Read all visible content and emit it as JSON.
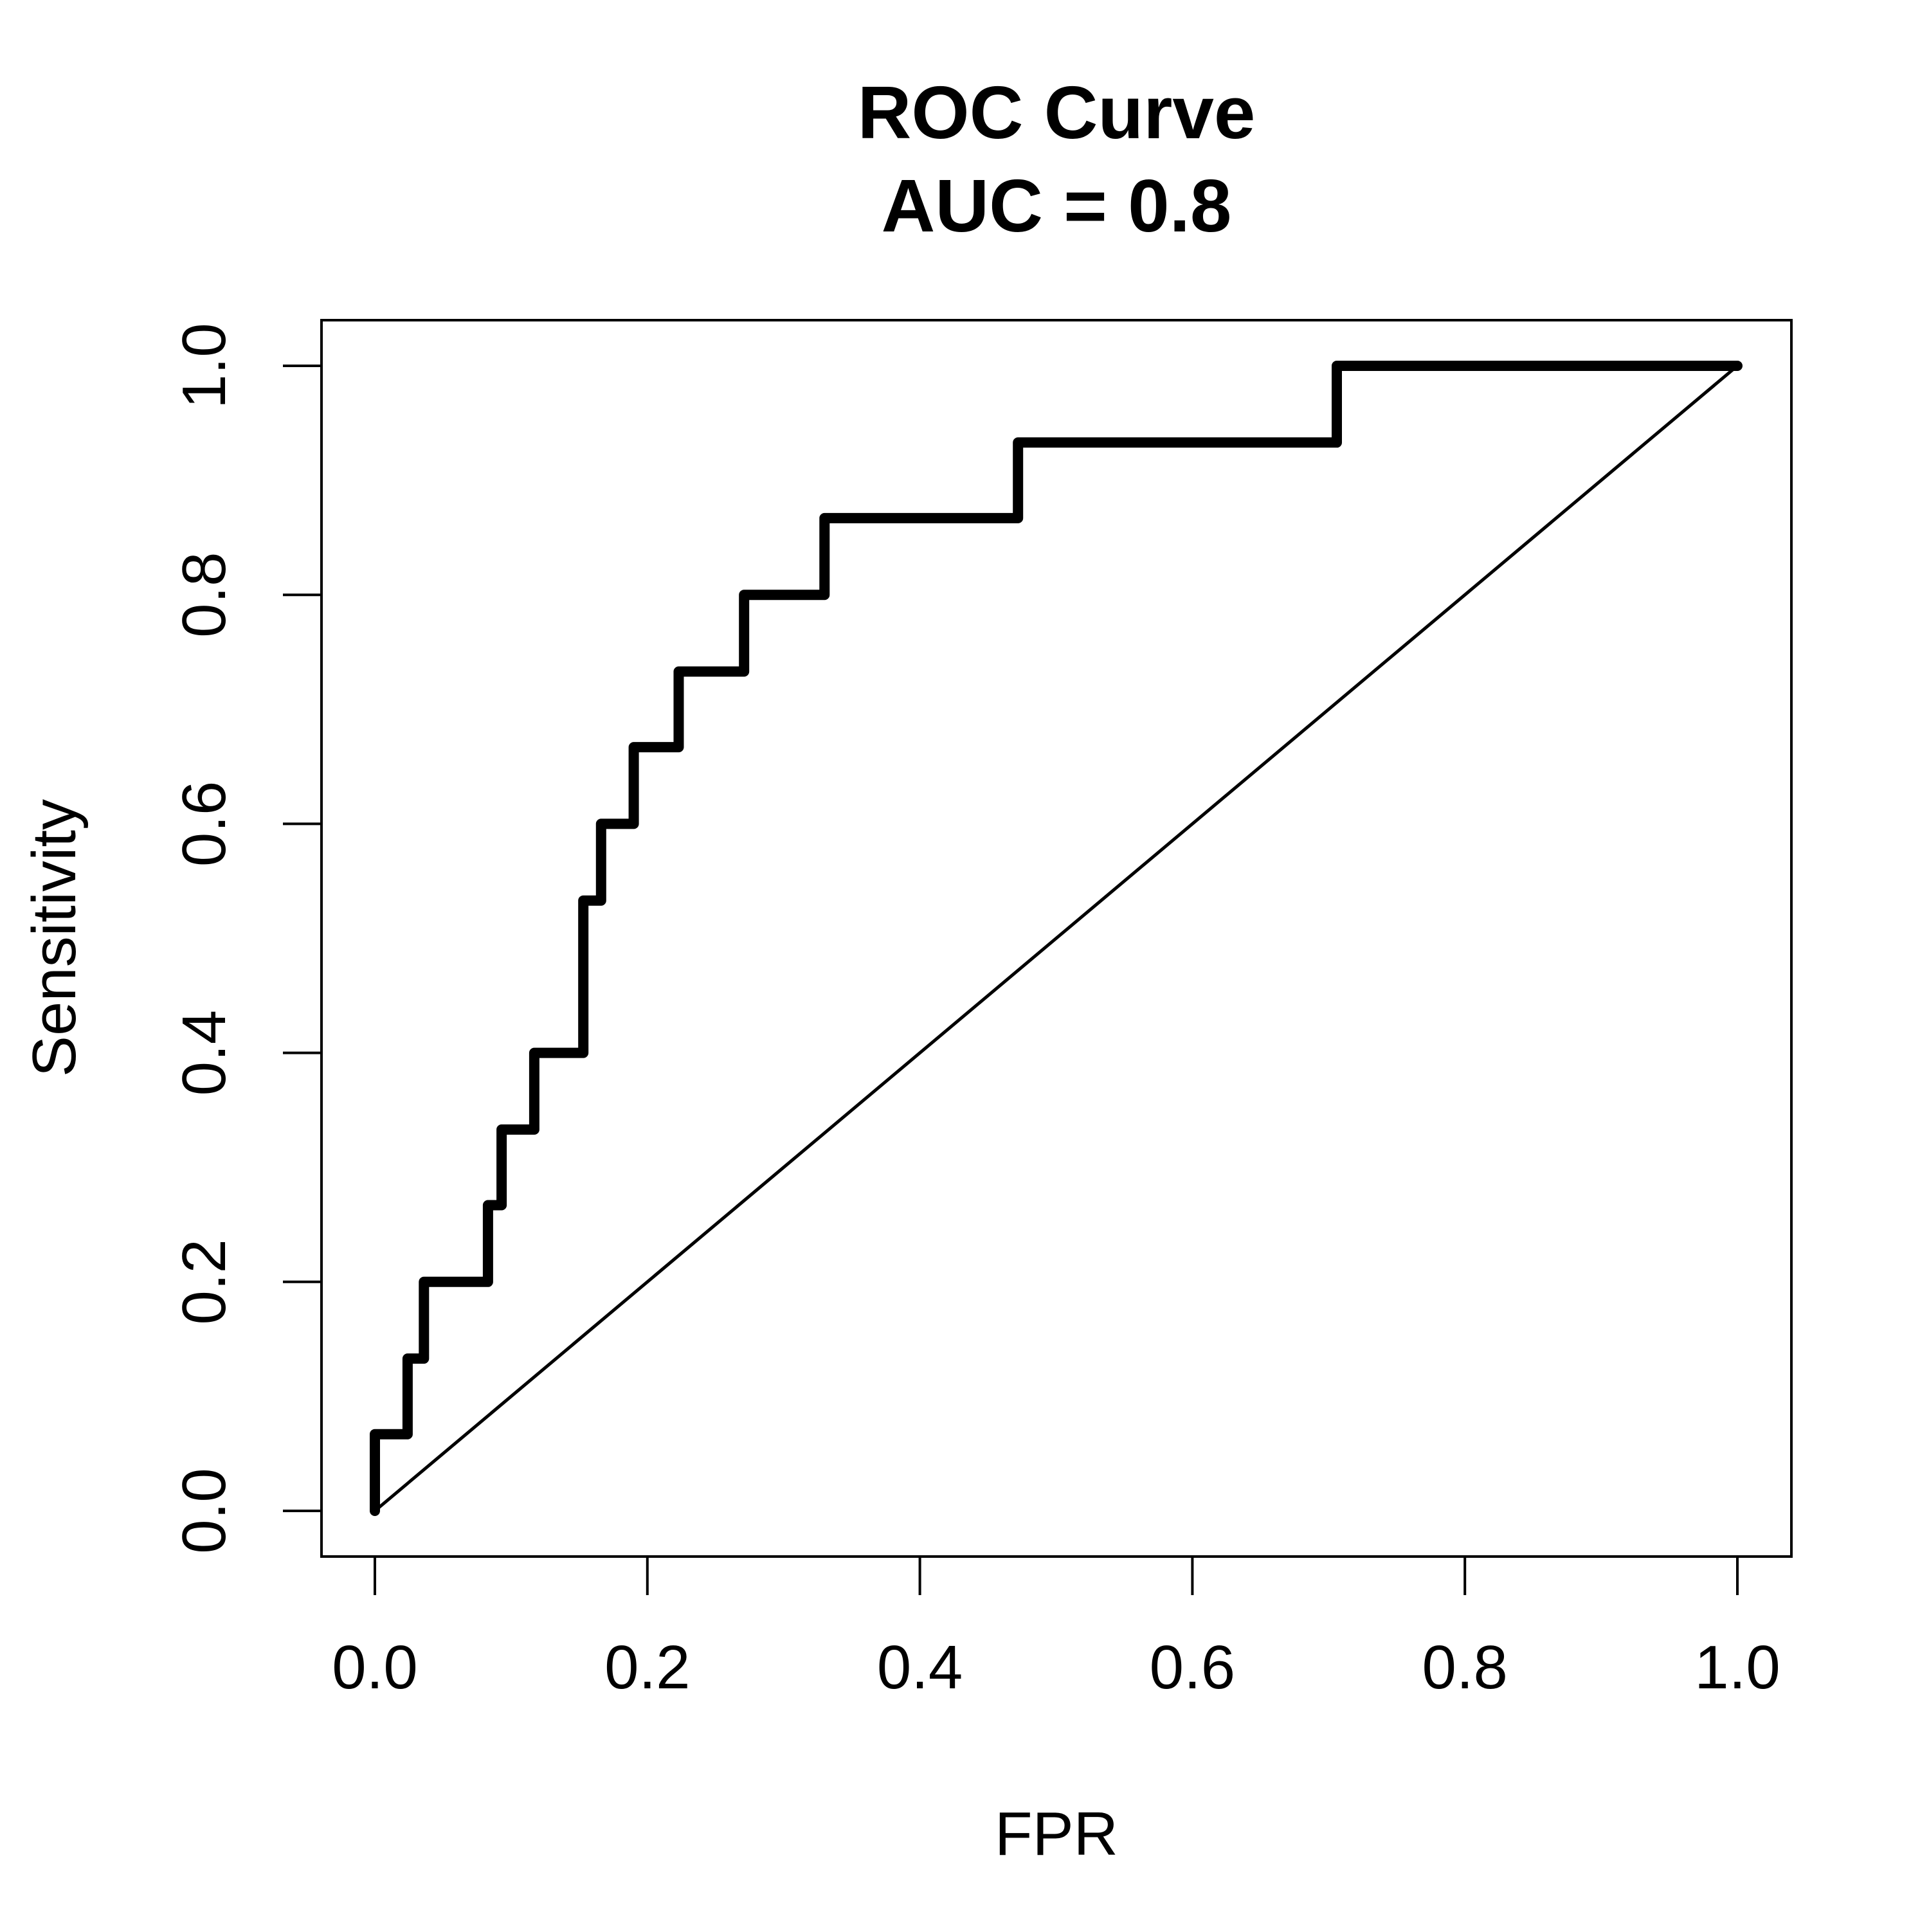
{
  "chart_data": {
    "type": "line",
    "title": "ROC Curve",
    "subtitle": "AUC = 0.8",
    "xlabel": "FPR",
    "ylabel": "Sensitivity",
    "xlim": [
      0,
      1
    ],
    "ylim": [
      0,
      1
    ],
    "x_ticks": [
      "0.0",
      "0.2",
      "0.4",
      "0.6",
      "0.8",
      "1.0"
    ],
    "y_ticks": [
      "0.0",
      "0.2",
      "0.4",
      "0.6",
      "0.8",
      "1.0"
    ],
    "grid": false,
    "legend": "none",
    "series": [
      {
        "style": "thick step line",
        "color": "#000000",
        "x": [
          0,
          0,
          0.024,
          0.024,
          0.036,
          0.036,
          0.083,
          0.083,
          0.093,
          0.093,
          0.117,
          0.117,
          0.153,
          0.153,
          0.166,
          0.166,
          0.19,
          0.19,
          0.223,
          0.223,
          0.271,
          0.271,
          0.33,
          0.33,
          0.472,
          0.472,
          0.706,
          0.706,
          1.0
        ],
        "y": [
          0,
          0.067,
          0.067,
          0.133,
          0.133,
          0.2,
          0.2,
          0.267,
          0.267,
          0.333,
          0.333,
          0.4,
          0.4,
          0.533,
          0.533,
          0.6,
          0.6,
          0.667,
          0.667,
          0.733,
          0.733,
          0.8,
          0.8,
          0.867,
          0.867,
          0.933,
          0.933,
          1.0,
          1.0
        ]
      },
      {
        "style": "thin diagonal reference line",
        "color": "#000000",
        "x": [
          0,
          1
        ],
        "y": [
          0,
          1
        ]
      }
    ]
  }
}
